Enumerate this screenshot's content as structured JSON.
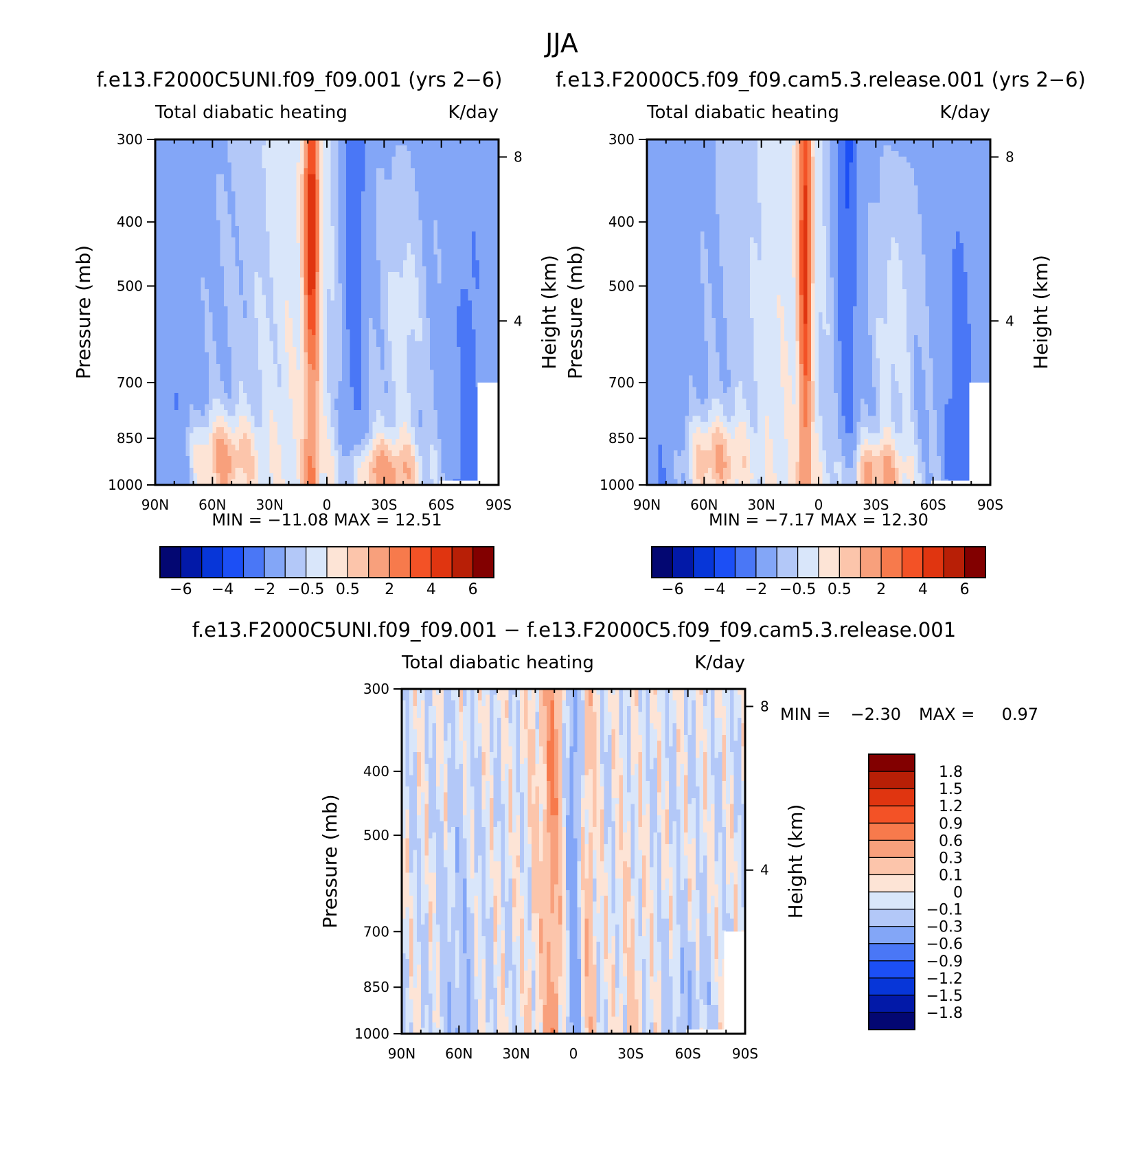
{
  "figure": {
    "title": "JJA"
  },
  "chart_data": [
    {
      "id": "panel-1",
      "type": "heatmap",
      "title": "f.e13.F2000C5UNI.f09_f09.001 (yrs 2-6)",
      "subtitle_left": "Total diabatic heating",
      "subtitle_right": "K/day",
      "xlabel": "",
      "ylabel": "Pressure (mb)",
      "y2label": "Height (km)",
      "x_ticks": [
        "90N",
        "60N",
        "30N",
        "0",
        "30S",
        "60S",
        "90S"
      ],
      "x_range": [
        90,
        -90
      ],
      "y_ticks": [
        "300",
        "400",
        "500",
        "700",
        "850",
        "1000"
      ],
      "y_range": [
        300,
        1000
      ],
      "y_scale": "log",
      "y2_ticks": [
        "8",
        "4"
      ],
      "min_label": "MIN =",
      "min_value": "-11.08",
      "max_label": "MAX =",
      "max_value": "12.51",
      "colorbar": {
        "orientation": "horizontal",
        "levels": [
          -6,
          -5,
          -4,
          -3,
          -2,
          -1,
          -0.5,
          0,
          0.5,
          1,
          2,
          3,
          4,
          5,
          6
        ],
        "labels": [
          "-6",
          "-4",
          "-2",
          "-0.5",
          "0.5",
          "2",
          "4",
          "6"
        ],
        "colors": [
          "#030772",
          "#0219a8",
          "#0736d8",
          "#1c4ff5",
          "#4a77f6",
          "#83a6f7",
          "#b3c8f8",
          "#d9e6fa",
          "#fde4d6",
          "#fcc5ab",
          "#f8a07c",
          "#f77a4c",
          "#f35226",
          "#e03510",
          "#b81f06",
          "#820000"
        ]
      }
    },
    {
      "id": "panel-2",
      "type": "heatmap",
      "title": "f.e13.F2000C5.f09_f09.cam5.3.release.001 (yrs 2-6)",
      "subtitle_left": "Total diabatic heating",
      "subtitle_right": "K/day",
      "xlabel": "",
      "ylabel": "Pressure (mb)",
      "y2label": "Height (km)",
      "x_ticks": [
        "90N",
        "60N",
        "30N",
        "0",
        "30S",
        "60S",
        "90S"
      ],
      "x_range": [
        90,
        -90
      ],
      "y_ticks": [
        "300",
        "400",
        "500",
        "700",
        "850",
        "1000"
      ],
      "y_range": [
        300,
        1000
      ],
      "y_scale": "log",
      "y2_ticks": [
        "8",
        "4"
      ],
      "min_label": "MIN =",
      "min_value": "-7.17",
      "max_label": "MAX =",
      "max_value": "12.30",
      "colorbar": {
        "orientation": "horizontal",
        "levels": [
          -6,
          -5,
          -4,
          -3,
          -2,
          -1,
          -0.5,
          0,
          0.5,
          1,
          2,
          3,
          4,
          5,
          6
        ],
        "labels": [
          "-6",
          "-4",
          "-2",
          "-0.5",
          "0.5",
          "2",
          "4",
          "6"
        ],
        "colors": [
          "#030772",
          "#0219a8",
          "#0736d8",
          "#1c4ff5",
          "#4a77f6",
          "#83a6f7",
          "#b3c8f8",
          "#d9e6fa",
          "#fde4d6",
          "#fcc5ab",
          "#f8a07c",
          "#f77a4c",
          "#f35226",
          "#e03510",
          "#b81f06",
          "#820000"
        ]
      }
    },
    {
      "id": "panel-3",
      "type": "heatmap",
      "title": "f.e13.F2000C5UNI.f09_f09.001 - f.e13.F2000C5.f09_f09.cam5.3.release.001",
      "subtitle_left": "Total diabatic heating",
      "subtitle_right": "K/day",
      "xlabel": "",
      "ylabel": "Pressure (mb)",
      "y2label": "Height (km)",
      "x_ticks": [
        "90N",
        "60N",
        "30N",
        "0",
        "30S",
        "60S",
        "90S"
      ],
      "x_range": [
        90,
        -90
      ],
      "y_ticks": [
        "300",
        "400",
        "500",
        "700",
        "850",
        "1000"
      ],
      "y_range": [
        300,
        1000
      ],
      "y_scale": "log",
      "y2_ticks": [
        "8",
        "4"
      ],
      "min_label": "MIN =",
      "min_value": "-2.30",
      "max_label": "MAX =",
      "max_value": "0.97",
      "colorbar": {
        "orientation": "vertical",
        "levels": [
          -1.8,
          -1.5,
          -1.2,
          -0.9,
          -0.6,
          -0.3,
          -0.1,
          0,
          0.1,
          0.3,
          0.6,
          0.9,
          1.2,
          1.5,
          1.8
        ],
        "labels": [
          "-1.8",
          "-1.5",
          "-1.2",
          "-0.9",
          "-0.6",
          "-0.3",
          "-0.1",
          "0",
          "0.1",
          "0.3",
          "0.6",
          "0.9",
          "1.2",
          "1.5",
          "1.8"
        ],
        "colors": [
          "#030772",
          "#0219a8",
          "#0736d8",
          "#1c4ff5",
          "#4a77f6",
          "#83a6f7",
          "#b3c8f8",
          "#d9e6fa",
          "#fde4d6",
          "#fcc5ab",
          "#f8a07c",
          "#f77a4c",
          "#f35226",
          "#e03510",
          "#b81f06",
          "#820000"
        ]
      }
    }
  ]
}
